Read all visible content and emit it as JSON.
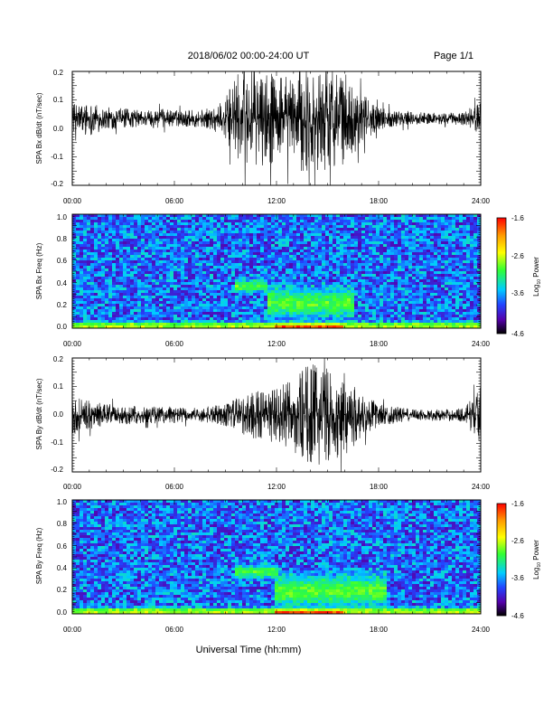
{
  "header": {
    "title": "2018/06/02  00:00-24:00 UT",
    "page_label": "Page 1/1"
  },
  "footer": {
    "xlabel": "Universal Time (hh:mm)"
  },
  "colorbar": {
    "label": "Log10 Power",
    "label_main": "Log",
    "label_sub": "10",
    "label_rest": " Power",
    "range": [
      -4.6,
      -1.6
    ],
    "tick_labels": [
      "-1.6",
      "-2.6",
      "-3.6",
      "-4.6"
    ]
  },
  "x_tick_labels": [
    "00:00",
    "06:00",
    "12:00",
    "18:00",
    "24:00"
  ],
  "chart_data": [
    {
      "type": "line",
      "ylabel": "SPA Bx dB/dt (nT/sec)",
      "xlim": [
        0,
        24
      ],
      "ylim": [
        -0.2,
        0.2
      ],
      "y_tick_labels": [
        "0.2",
        "0.1",
        "0.0",
        "-0.1",
        "-0.2"
      ],
      "baseline": 0.035,
      "series": [
        {
          "x": [
            0,
            1,
            2,
            3,
            4,
            5,
            6,
            7,
            8,
            9,
            9.5,
            10,
            11,
            12,
            13,
            13.5,
            14,
            15,
            16,
            17,
            18,
            19,
            20,
            21,
            22,
            23,
            24
          ],
          "amplitude": [
            0.05,
            0.06,
            0.04,
            0.035,
            0.03,
            0.035,
            0.03,
            0.03,
            0.035,
            0.07,
            0.14,
            0.18,
            0.17,
            0.16,
            0.15,
            0.2,
            0.18,
            0.19,
            0.16,
            0.09,
            0.04,
            0.03,
            0.025,
            0.02,
            0.02,
            0.025,
            0.06
          ]
        }
      ]
    },
    {
      "type": "heatmap",
      "ylabel": "SPA Bx Freq (Hz)",
      "xlim": [
        0,
        24
      ],
      "ylim": [
        0.0,
        1.0
      ],
      "y_tick_labels": [
        "1.0",
        "0.8",
        "0.6",
        "0.4",
        "0.2",
        "0.0"
      ],
      "zlim": [
        -4.6,
        -1.6
      ],
      "features": [
        {
          "x_range": [
            9.5,
            11.5
          ],
          "freq_center": 0.37,
          "freq_width": 0.05,
          "level": -2.9
        },
        {
          "x_range": [
            11.5,
            16.5
          ],
          "freq_center": 0.22,
          "freq_width": 0.12,
          "level": -2.9
        },
        {
          "x_range": [
            0,
            24
          ],
          "freq_center": 0.02,
          "freq_width": 0.03,
          "level": -2.6
        },
        {
          "x_range": [
            12,
            16
          ],
          "freq_center": 0.01,
          "freq_width": 0.02,
          "level": -1.8
        }
      ]
    },
    {
      "type": "line",
      "ylabel": "SPA By dB/dt (nT/sec)",
      "xlim": [
        0,
        24
      ],
      "ylim": [
        -0.2,
        0.2
      ],
      "y_tick_labels": [
        "0.2",
        "0.1",
        "0.0",
        "-0.1",
        "-0.2"
      ],
      "baseline": 0.0,
      "series": [
        {
          "x": [
            0,
            1,
            2,
            3,
            4,
            5,
            6,
            7,
            8,
            9,
            10,
            11,
            12,
            13,
            13.5,
            14,
            15,
            16,
            17,
            18,
            19,
            20,
            21,
            22,
            23,
            24
          ],
          "amplitude": [
            0.07,
            0.05,
            0.04,
            0.035,
            0.03,
            0.03,
            0.03,
            0.025,
            0.03,
            0.04,
            0.07,
            0.09,
            0.1,
            0.13,
            0.16,
            0.18,
            0.17,
            0.15,
            0.08,
            0.04,
            0.03,
            0.02,
            0.02,
            0.02,
            0.025,
            0.1
          ]
        }
      ]
    },
    {
      "type": "heatmap",
      "ylabel": "SPA By Freq (Hz)",
      "xlim": [
        0,
        24
      ],
      "ylim": [
        0.0,
        1.0
      ],
      "y_tick_labels": [
        "1.0",
        "0.8",
        "0.6",
        "0.4",
        "0.2",
        "0.0"
      ],
      "zlim": [
        -4.6,
        -1.6
      ],
      "features": [
        {
          "x_range": [
            9.5,
            12
          ],
          "freq_center": 0.37,
          "freq_width": 0.05,
          "level": -2.9
        },
        {
          "x_range": [
            12,
            18.5
          ],
          "freq_center": 0.2,
          "freq_width": 0.13,
          "level": -2.9
        },
        {
          "x_range": [
            0,
            24
          ],
          "freq_center": 0.02,
          "freq_width": 0.03,
          "level": -2.6
        },
        {
          "x_range": [
            12,
            16
          ],
          "freq_center": 0.01,
          "freq_width": 0.02,
          "level": -1.8
        }
      ]
    }
  ]
}
